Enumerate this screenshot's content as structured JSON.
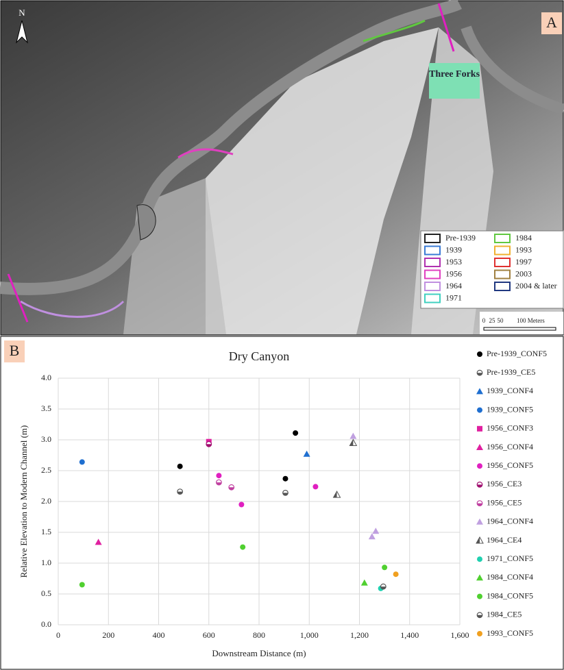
{
  "map": {
    "panel_label": "A",
    "north": "N",
    "place_label": "Three Forks",
    "legend": [
      {
        "name": "Pre-1939",
        "color": "#222222"
      },
      {
        "name": "1939",
        "color": "#3a7bd5"
      },
      {
        "name": "1953",
        "color": "#b030b0"
      },
      {
        "name": "1956",
        "color": "#e040c0"
      },
      {
        "name": "1964",
        "color": "#c090e0"
      },
      {
        "name": "1971",
        "color": "#40d0c0"
      },
      {
        "name": "1984",
        "color": "#60c840"
      },
      {
        "name": "1993",
        "color": "#f0b030"
      },
      {
        "name": "1997",
        "color": "#e03030"
      },
      {
        "name": "2003",
        "color": "#a08040"
      },
      {
        "name": "2004 & later",
        "color": "#203880"
      }
    ],
    "scale_labels": [
      "0",
      "25",
      "50",
      "100 Meters"
    ]
  },
  "chart_data": {
    "type": "scatter",
    "panel_label": "B",
    "title": "Dry Canyon",
    "x_label": "Downstream Distance (m)",
    "y_label": "Relative Elevation to Modern Channel (m)",
    "xlim": [
      0,
      1600
    ],
    "ylim": [
      0,
      4
    ],
    "xticks": [
      0,
      200,
      400,
      600,
      800,
      {
        "value": 1000,
        "label": "1,000"
      },
      {
        "value": 1200,
        "label": "1,200"
      },
      {
        "value": 1400,
        "label": "1,400"
      },
      {
        "value": 1600,
        "label": "1,600"
      }
    ],
    "yticks": [
      {
        "value": 0,
        "label": "0.0"
      },
      0.5,
      {
        "value": 1,
        "label": "1.0"
      },
      1.5,
      {
        "value": 2,
        "label": "2.0"
      },
      2.5,
      {
        "value": 3,
        "label": "3.0"
      },
      3.5,
      {
        "value": 4,
        "label": "4.0"
      }
    ],
    "grid": true,
    "series": [
      {
        "name": "Pre-1939_CONF5",
        "color": "#000000",
        "marker": "circle",
        "x": [
          485,
          905,
          945
        ],
        "values": [
          2.57,
          2.37,
          3.11
        ]
      },
      {
        "name": "Pre-1939_CE5",
        "color": "#555555",
        "marker": "half-circle",
        "x": [
          485,
          905
        ],
        "values": [
          2.16,
          2.14
        ]
      },
      {
        "name": "1939_CONF4",
        "color": "#1f6fd0",
        "marker": "triangle",
        "x": [
          990
        ],
        "values": [
          2.77
        ]
      },
      {
        "name": "1939_CONF5",
        "color": "#1f6fd0",
        "marker": "circle",
        "x": [
          95
        ],
        "values": [
          2.64
        ]
      },
      {
        "name": "1956_CONF3",
        "color": "#e020a0",
        "marker": "square",
        "x": [
          600
        ],
        "values": [
          2.97
        ]
      },
      {
        "name": "1956_CONF4",
        "color": "#e020a0",
        "marker": "triangle",
        "x": [
          160
        ],
        "values": [
          1.34
        ]
      },
      {
        "name": "1956_CONF5",
        "color": "#e020c0",
        "marker": "circle",
        "x": [
          640,
          690,
          730,
          1025
        ],
        "values": [
          2.42,
          2.23,
          1.95,
          2.24
        ]
      },
      {
        "name": "1956_CE3",
        "color": "#a01070",
        "marker": "half-circle",
        "x": [
          600
        ],
        "values": [
          2.93
        ]
      },
      {
        "name": "1956_CE5",
        "color": "#c040a0",
        "marker": "half-circle",
        "x": [
          640,
          690
        ],
        "values": [
          2.31,
          2.23
        ]
      },
      {
        "name": "1964_CONF4",
        "color": "#c0a0e0",
        "marker": "triangle",
        "x": [
          1175,
          1250,
          1265
        ],
        "values": [
          3.06,
          1.43,
          1.52
        ]
      },
      {
        "name": "1964_CE4",
        "color": "#555555",
        "marker": "open-triangle",
        "x": [
          1175,
          1110
        ],
        "values": [
          2.95,
          2.11
        ]
      },
      {
        "name": "1971_CONF5",
        "color": "#20d0b0",
        "marker": "circle",
        "x": [
          1285
        ],
        "values": [
          0.59
        ]
      },
      {
        "name": "1984_CONF4",
        "color": "#50d030",
        "marker": "triangle",
        "x": [
          1220
        ],
        "values": [
          0.68
        ]
      },
      {
        "name": "1984_CONF5",
        "color": "#50d030",
        "marker": "circle",
        "x": [
          95,
          735,
          1300
        ],
        "values": [
          0.65,
          1.26,
          0.93
        ]
      },
      {
        "name": "1984_CE5",
        "color": "#555555",
        "marker": "half-circle",
        "x": [
          1295
        ],
        "values": [
          0.62
        ]
      },
      {
        "name": "1993_CONF5",
        "color": "#f0a020",
        "marker": "circle",
        "x": [
          1345
        ],
        "values": [
          0.82
        ]
      }
    ]
  }
}
